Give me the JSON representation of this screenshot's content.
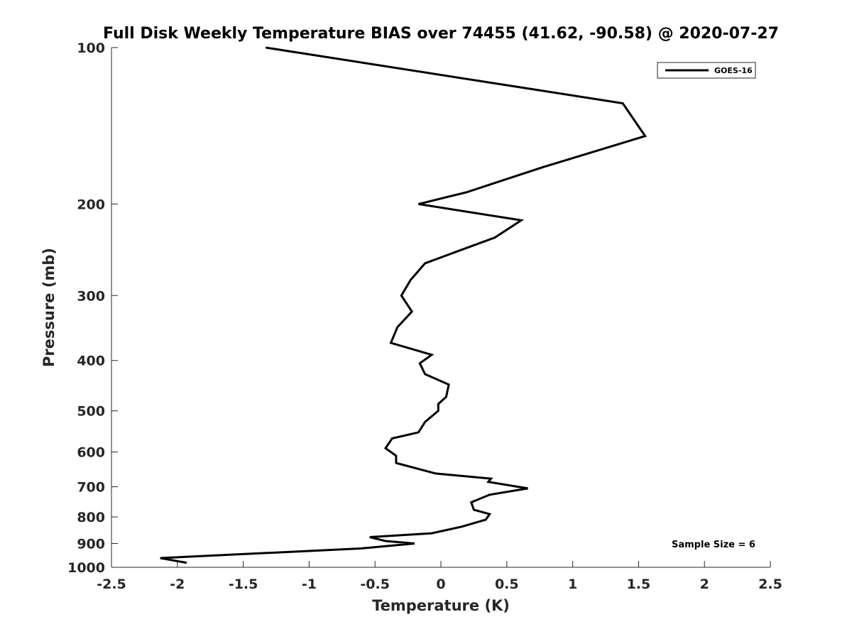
{
  "chart_data": {
    "type": "line",
    "title": "Full Disk Weekly Temperature BIAS over 74455 (41.62, -90.58) @ 2020-07-27",
    "xlabel": "Temperature (K)",
    "ylabel": "Pressure (mb)",
    "xlim": [
      -2.5,
      2.5
    ],
    "ylim": [
      100,
      1000
    ],
    "yscale": "log",
    "y_reversed": true,
    "xticks": [
      -2.5,
      -2,
      -1.5,
      -1,
      -0.5,
      0,
      0.5,
      1,
      1.5,
      2,
      2.5
    ],
    "xtick_labels": [
      "-2.5",
      "-2",
      "-1.5",
      "-1",
      "-0.5",
      "0",
      "0.5",
      "1",
      "1.5",
      "2",
      "2.5"
    ],
    "yticks": [
      100,
      200,
      300,
      400,
      500,
      600,
      700,
      800,
      900,
      1000
    ],
    "ytick_labels": [
      "100",
      "200",
      "300",
      "400",
      "500",
      "600",
      "700",
      "800",
      "900",
      "1000"
    ],
    "grid": false,
    "legend_position": "top-right",
    "series": [
      {
        "name": "GOES-16",
        "color": "#000000",
        "points": [
          [
            -1.33,
            100
          ],
          [
            1.38,
            128
          ],
          [
            1.55,
            148
          ],
          [
            0.77,
            170
          ],
          [
            0.19,
            190
          ],
          [
            -0.17,
            200
          ],
          [
            0.61,
            215
          ],
          [
            0.41,
            232
          ],
          [
            -0.12,
            260
          ],
          [
            -0.23,
            280
          ],
          [
            -0.3,
            300
          ],
          [
            -0.22,
            322
          ],
          [
            -0.33,
            345
          ],
          [
            -0.38,
            370
          ],
          [
            -0.07,
            390
          ],
          [
            -0.16,
            405
          ],
          [
            -0.12,
            425
          ],
          [
            0.06,
            445
          ],
          [
            0.04,
            470
          ],
          [
            -0.02,
            485
          ],
          [
            -0.02,
            500
          ],
          [
            -0.12,
            525
          ],
          [
            -0.17,
            550
          ],
          [
            -0.37,
            565
          ],
          [
            -0.42,
            590
          ],
          [
            -0.34,
            610
          ],
          [
            -0.34,
            630
          ],
          [
            -0.04,
            660
          ],
          [
            0.38,
            675
          ],
          [
            0.36,
            685
          ],
          [
            0.66,
            705
          ],
          [
            0.37,
            725
          ],
          [
            0.23,
            750
          ],
          [
            0.25,
            775
          ],
          [
            0.37,
            790
          ],
          [
            0.34,
            810
          ],
          [
            0.16,
            835
          ],
          [
            -0.07,
            860
          ],
          [
            -0.54,
            875
          ],
          [
            -0.42,
            890
          ],
          [
            -0.2,
            900
          ],
          [
            -0.61,
            920
          ],
          [
            -2.13,
            960
          ],
          [
            -1.93,
            980
          ]
        ]
      }
    ],
    "annotation": "Sample Size = 6"
  }
}
